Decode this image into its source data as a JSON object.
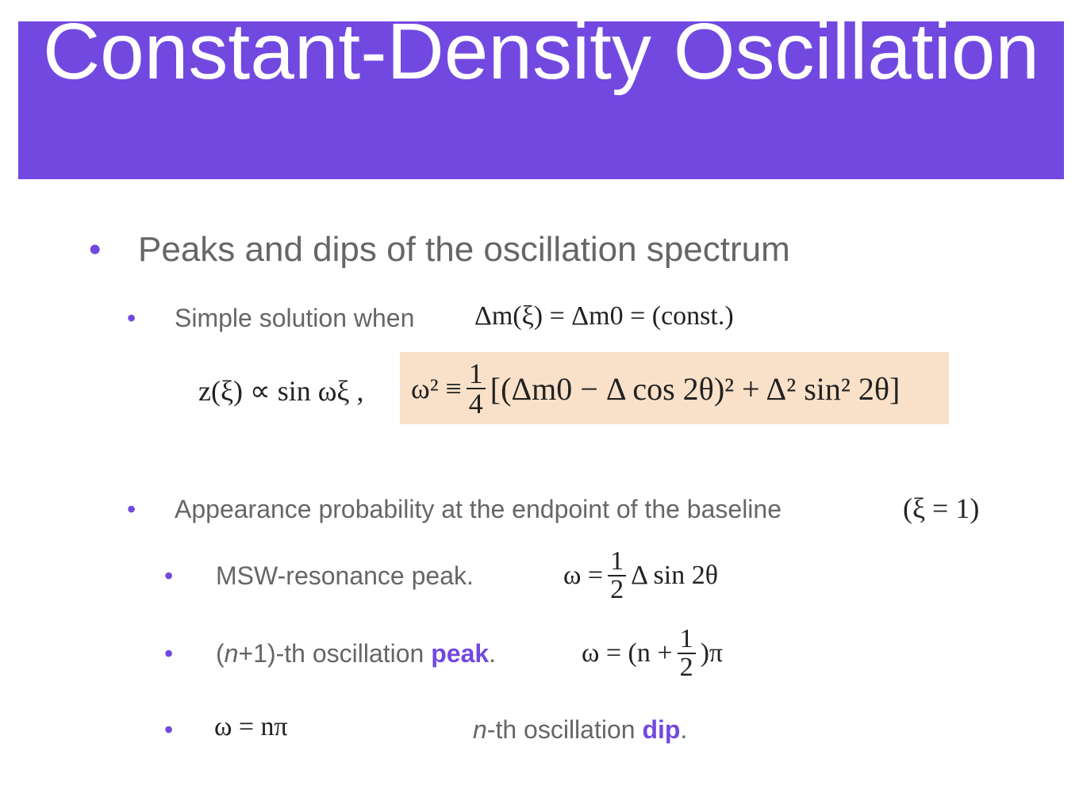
{
  "title": "Constant-Density Oscillation",
  "bullet1": "Peaks and dips of the oscillation spectrum",
  "simple": {
    "text": "Simple solution when",
    "formula": "Δm(ξ) = Δm0 = (const.)"
  },
  "solution": {
    "left": "z(ξ) ∝ sin ωξ ,",
    "lhs": "ω² ≡",
    "num": "1",
    "den": "4",
    "rhs": "[(Δm0 − Δ cos 2θ)² + Δ² sin² 2θ]"
  },
  "appearance": {
    "text": "Appearance probability at the endpoint of the baseline",
    "formula": "(ξ = 1)"
  },
  "msw": {
    "text": "MSW-resonance peak.",
    "lhs": "ω =",
    "num": "1",
    "den": "2",
    "rhs": "Δ sin 2θ"
  },
  "peak": {
    "open": "(",
    "n": "n",
    "rest": "+1)-th oscillation ",
    "word": "peak",
    "end": ".",
    "lhs": "ω = (n +",
    "num": "1",
    "den": "2",
    "rhs": ")π"
  },
  "dip": {
    "formula": "ω = nπ",
    "n": "n",
    "rest": "-th oscillation ",
    "word": "dip",
    "end": "."
  }
}
